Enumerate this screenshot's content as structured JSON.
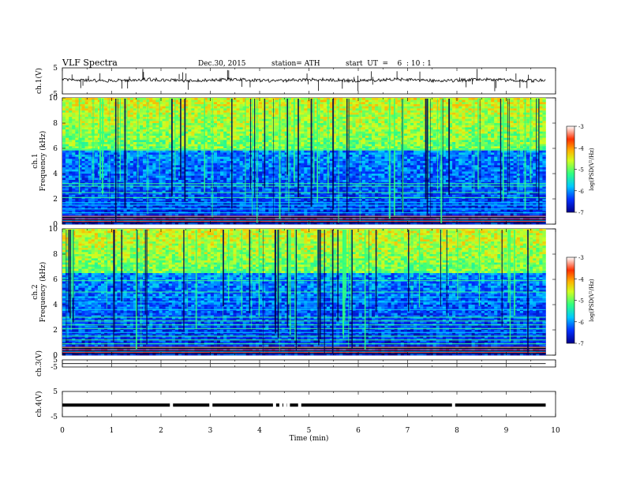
{
  "header": {
    "title": "VLF  Spectra",
    "date": "Dec.30, 2015",
    "station": "station= ATH",
    "start": "start  UT  =    6  : 10 : 1"
  },
  "chart_data": [
    {
      "type": "line",
      "panel": "ch1-waveform",
      "ylabel": "ch.1(V)",
      "yticks": [
        "5",
        "-5"
      ],
      "ylim": [
        -5,
        5
      ],
      "xlim": [
        0,
        10
      ],
      "trace_end": 9.8,
      "baseline": 0.3
    },
    {
      "type": "heatmap",
      "panel": "ch1-spectrogram",
      "ylabel": "ch.1\nFrequency  (kHz)",
      "ylabel_lines": [
        "ch.1",
        "Frequency  (kHz)"
      ],
      "yticks": [
        "0",
        "2",
        "4",
        "6",
        "8",
        "10"
      ],
      "ylim": [
        0,
        10
      ],
      "xlim": [
        0,
        10
      ],
      "data_end": 9.8,
      "colorbar": {
        "label": "log(PSD(V²/Hz)",
        "ticks": [
          "-3",
          "-4",
          "-5",
          "-6",
          "-7"
        ],
        "range": [
          -7,
          -3
        ]
      },
      "noise_floor_khz": 5.8,
      "tones_khz": [
        0.3,
        0.6,
        0.9,
        1.2,
        1.5,
        1.7,
        2.1,
        2.5,
        3.0,
        3.2,
        5.9
      ]
    },
    {
      "type": "heatmap",
      "panel": "ch2-spectrogram",
      "ylabel": "ch.2\nFrequency  (kHz)",
      "ylabel_lines": [
        "ch.2",
        "Frequency  (kHz)"
      ],
      "yticks": [
        "0",
        "2",
        "4",
        "6",
        "8",
        "10"
      ],
      "ylim": [
        0,
        10
      ],
      "xlim": [
        0,
        10
      ],
      "data_end": 9.8,
      "colorbar": {
        "label": "log(PSD(V²/Hz)",
        "ticks": [
          "-3",
          "-4",
          "-5",
          "-6",
          "-7"
        ],
        "range": [
          -7,
          -3
        ]
      },
      "noise_floor_khz": 6.5,
      "tones_khz": [
        0.3,
        0.6,
        0.9,
        1.2,
        1.5,
        1.8,
        2.1,
        2.4,
        2.7,
        3.0,
        3.6,
        4.2,
        4.6,
        5.0,
        5.9
      ]
    },
    {
      "type": "line",
      "panel": "ch3-waveform",
      "ylabel": "ch.3(V)",
      "yticks": [
        "5",
        "-5"
      ],
      "ylim": [
        -5,
        5
      ],
      "xlim": [
        0,
        10
      ],
      "trace_end": 9.8,
      "baseline": -0.2
    },
    {
      "type": "line",
      "panel": "ch4-waveform",
      "ylabel": "ch.4(V)",
      "yticks": [
        "5",
        "-5"
      ],
      "ylim": [
        -5,
        5
      ],
      "xlim": [
        0,
        10
      ],
      "trace_end": 9.8,
      "baseline": -0.4,
      "gaps_min": [
        2.18,
        2.98,
        4.27,
        4.4,
        4.48,
        4.55,
        4.78,
        7.9
      ],
      "xlabel": "Time  (min)",
      "xticks": [
        "0",
        "1",
        "2",
        "3",
        "4",
        "5",
        "6",
        "7",
        "8",
        "9",
        "10"
      ]
    }
  ]
}
